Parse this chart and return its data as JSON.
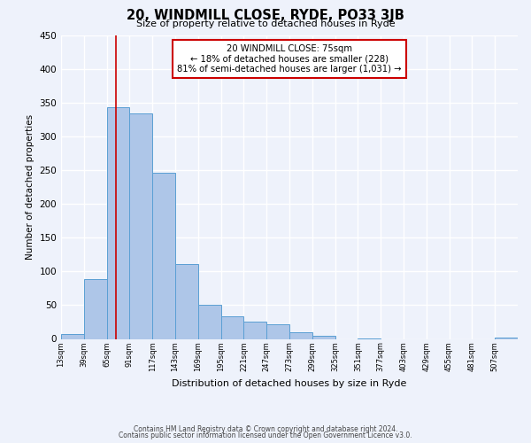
{
  "title": "20, WINDMILL CLOSE, RYDE, PO33 3JB",
  "subtitle": "Size of property relative to detached houses in Ryde",
  "xlabel": "Distribution of detached houses by size in Ryde",
  "ylabel": "Number of detached properties",
  "bar_color": "#aec6e8",
  "bar_edge_color": "#5a9fd4",
  "bg_color": "#eef2fb",
  "grid_color": "#ffffff",
  "annotation_box_color": "#cc0000",
  "red_line_x": 75,
  "annotation_text_line1": "20 WINDMILL CLOSE: 75sqm",
  "annotation_text_line2": "← 18% of detached houses are smaller (228)",
  "annotation_text_line3": "81% of semi-detached houses are larger (1,031) →",
  "bin_edges": [
    13,
    39,
    65,
    91,
    117,
    143,
    169,
    195,
    221,
    247,
    273,
    299,
    325,
    351,
    377,
    403,
    429,
    455,
    481,
    507,
    533
  ],
  "bar_heights": [
    7,
    89,
    343,
    334,
    246,
    111,
    50,
    33,
    26,
    22,
    10,
    5,
    0,
    1,
    0,
    0,
    0,
    0,
    0,
    2
  ],
  "ylim": [
    0,
    450
  ],
  "yticks": [
    0,
    50,
    100,
    150,
    200,
    250,
    300,
    350,
    400,
    450
  ],
  "footer_line1": "Contains HM Land Registry data © Crown copyright and database right 2024.",
  "footer_line2": "Contains public sector information licensed under the Open Government Licence v3.0."
}
